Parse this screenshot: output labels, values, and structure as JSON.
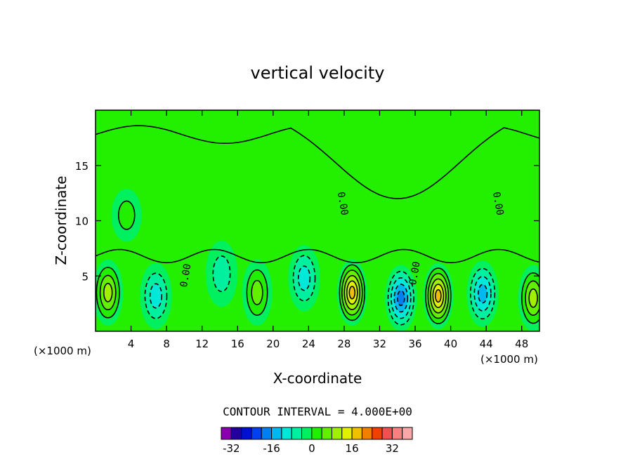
{
  "chart_data": {
    "type": "heatmap",
    "title": "vertical velocity",
    "xlabel": "X-coordinate",
    "ylabel": "Z-coordinate",
    "x_unit": "(×1000 m)",
    "x_unit_right": "(×1000 m)",
    "xlim": [
      0,
      50
    ],
    "ylim": [
      0,
      20
    ],
    "x_ticks": [
      4,
      8,
      12,
      16,
      20,
      24,
      28,
      32,
      36,
      40,
      44,
      48
    ],
    "y_ticks": [
      5,
      10,
      15
    ],
    "contour_interval_label": "CONTOUR INTERVAL = 4.000E+00",
    "contour_label": "0.00",
    "colorbar": {
      "tick_labels": [
        "-32",
        "-16",
        "0",
        "16",
        "32"
      ],
      "tick_values": [
        -32,
        -16,
        0,
        16,
        32
      ],
      "colors": [
        "#8a00b0",
        "#2200a0",
        "#0010d0",
        "#0040f0",
        "#0080f0",
        "#00b8f0",
        "#00e8d8",
        "#00f0a0",
        "#00f060",
        "#20f000",
        "#60f000",
        "#a0f000",
        "#e0f000",
        "#f0c000",
        "#f08000",
        "#f04000",
        "#f05050",
        "#f88080",
        "#f8a8a8"
      ]
    },
    "features": [
      {
        "kind": "updraft",
        "x": 1.4,
        "z": 3.5,
        "peak": 12
      },
      {
        "kind": "downdraft",
        "x": 6.8,
        "z": 3.2,
        "peak": -8
      },
      {
        "kind": "downdraft",
        "x": 14.2,
        "z": 5.2,
        "peak": -4
      },
      {
        "kind": "updraft",
        "x": 18.2,
        "z": 3.5,
        "peak": 6
      },
      {
        "kind": "downdraft",
        "x": 23.5,
        "z": 4.8,
        "peak": -6
      },
      {
        "kind": "updraft",
        "x": 28.9,
        "z": 3.5,
        "peak": 18
      },
      {
        "kind": "downdraft",
        "x": 34.4,
        "z": 3.0,
        "peak": -14
      },
      {
        "kind": "updraft",
        "x": 38.6,
        "z": 3.2,
        "peak": 18
      },
      {
        "kind": "downdraft",
        "x": 43.6,
        "z": 3.4,
        "peak": -10
      },
      {
        "kind": "updraft",
        "x": 49.3,
        "z": 3.0,
        "peak": 10
      },
      {
        "kind": "updraft",
        "x": 3.5,
        "z": 10.5,
        "peak": 2
      }
    ]
  }
}
